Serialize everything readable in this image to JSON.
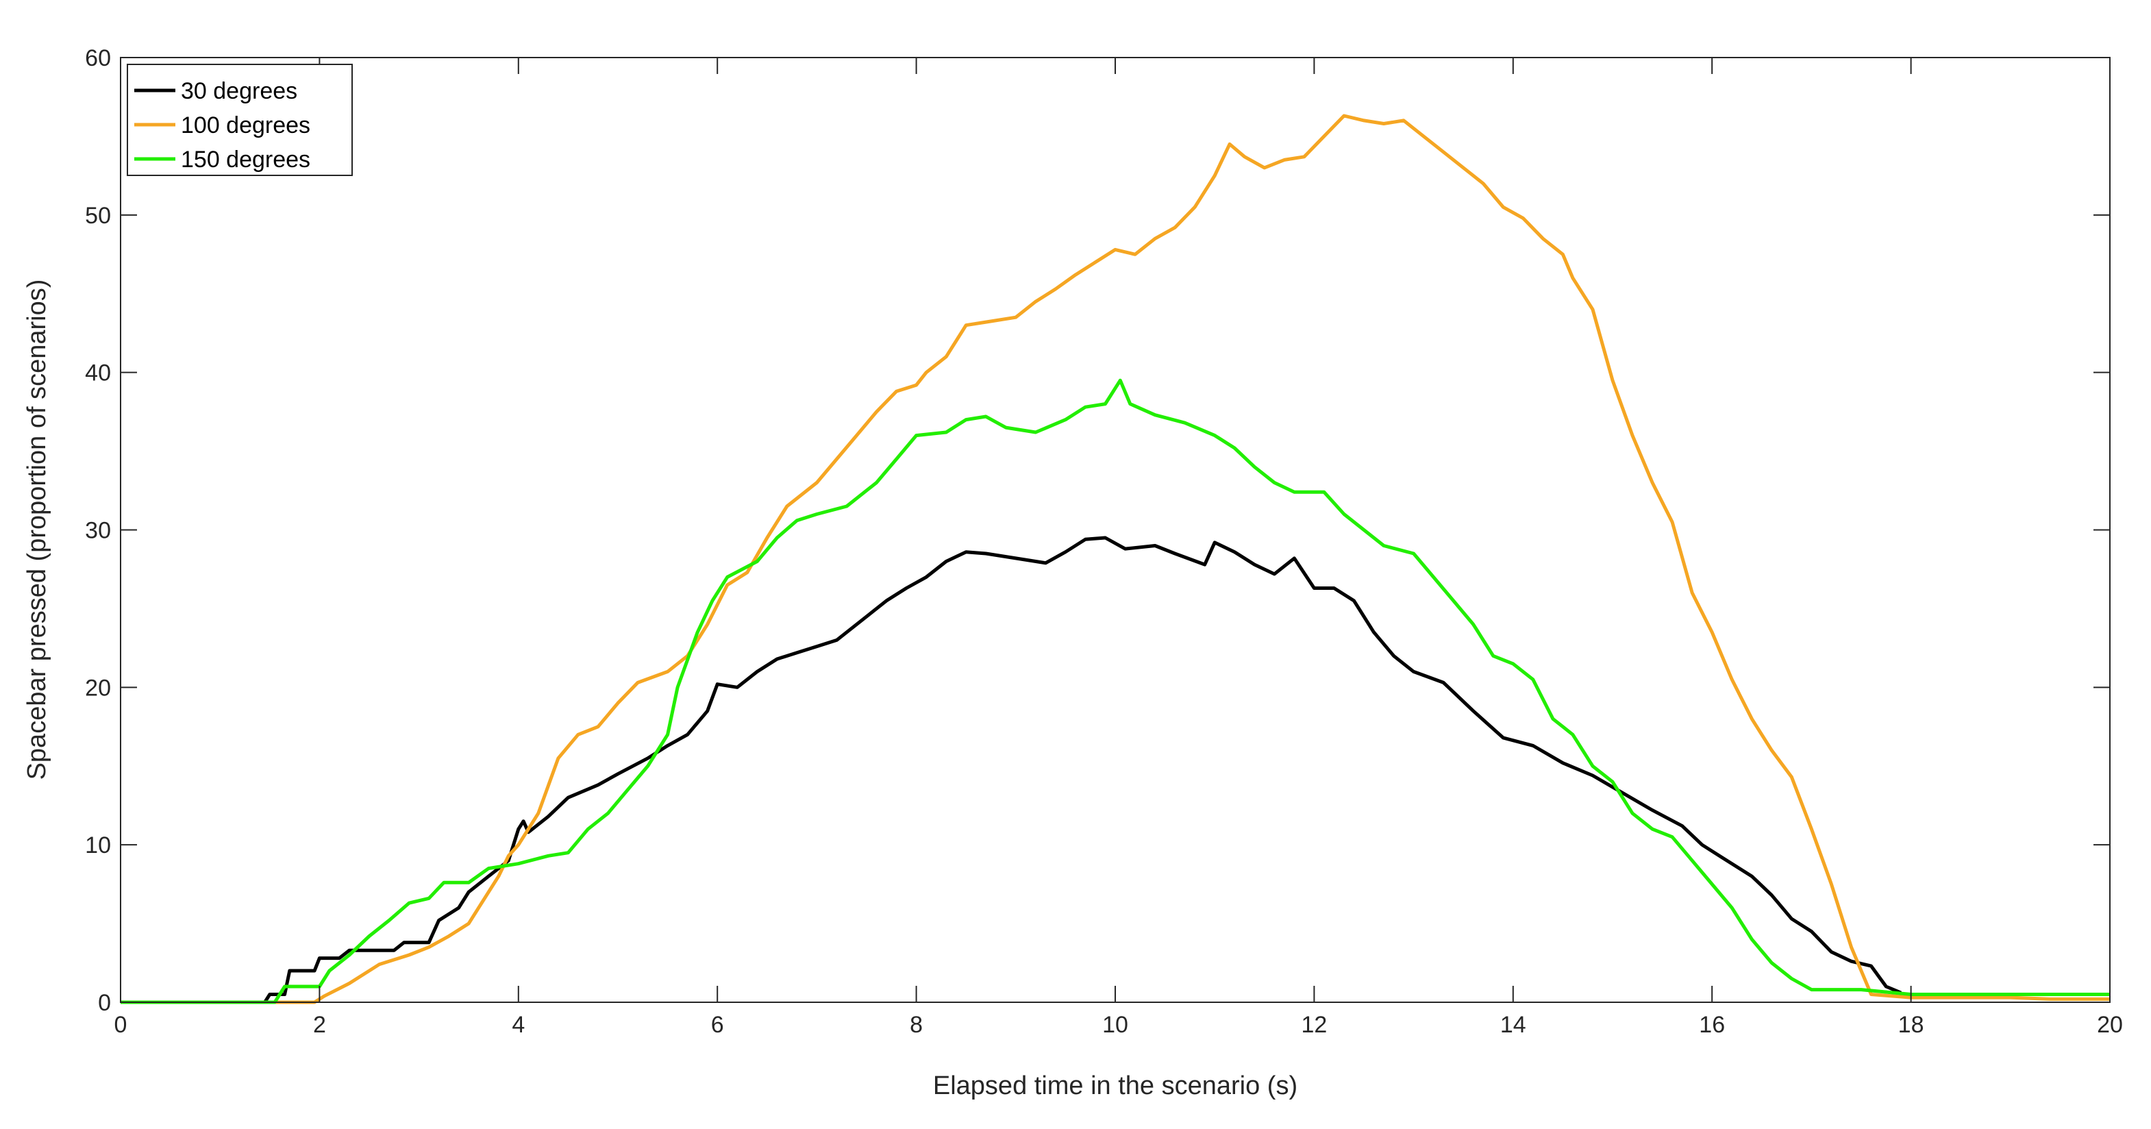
{
  "chart_data": {
    "type": "line",
    "title": "",
    "xlabel": "Elapsed time in the scenario (s)",
    "ylabel": "Spacebar pressed (proportion of scenarios)",
    "xlim": [
      0,
      20
    ],
    "ylim": [
      0,
      60
    ],
    "x_ticks": [
      "0",
      "2",
      "4",
      "6",
      "8",
      "10",
      "12",
      "14",
      "16",
      "18",
      "20"
    ],
    "y_ticks": [
      "0",
      "10",
      "20",
      "30",
      "40",
      "50",
      "60"
    ],
    "grid": false,
    "legend_position": "top-left",
    "series": [
      {
        "name": "30 degrees",
        "color": "#000000",
        "points": [
          [
            0,
            0
          ],
          [
            1.45,
            0
          ],
          [
            1.5,
            0.5
          ],
          [
            1.65,
            0.5
          ],
          [
            1.7,
            2
          ],
          [
            1.95,
            2
          ],
          [
            2.0,
            2.8
          ],
          [
            2.2,
            2.8
          ],
          [
            2.3,
            3.3
          ],
          [
            2.75,
            3.3
          ],
          [
            2.85,
            3.8
          ],
          [
            3.1,
            3.8
          ],
          [
            3.2,
            5.2
          ],
          [
            3.4,
            6.0
          ],
          [
            3.5,
            7.0
          ],
          [
            3.7,
            8.0
          ],
          [
            3.9,
            9.0
          ],
          [
            4.0,
            11.0
          ],
          [
            4.05,
            11.5
          ],
          [
            4.1,
            10.8
          ],
          [
            4.3,
            11.8
          ],
          [
            4.5,
            13.0
          ],
          [
            4.8,
            13.8
          ],
          [
            5.0,
            14.5
          ],
          [
            5.3,
            15.5
          ],
          [
            5.5,
            16.3
          ],
          [
            5.7,
            17.0
          ],
          [
            5.9,
            18.5
          ],
          [
            6.0,
            20.2
          ],
          [
            6.2,
            20.0
          ],
          [
            6.4,
            21.0
          ],
          [
            6.6,
            21.8
          ],
          [
            6.8,
            22.2
          ],
          [
            7.0,
            22.6
          ],
          [
            7.2,
            23.0
          ],
          [
            7.5,
            24.5
          ],
          [
            7.7,
            25.5
          ],
          [
            7.9,
            26.3
          ],
          [
            8.1,
            27.0
          ],
          [
            8.3,
            28.0
          ],
          [
            8.5,
            28.6
          ],
          [
            8.7,
            28.5
          ],
          [
            9.0,
            28.2
          ],
          [
            9.3,
            27.9
          ],
          [
            9.5,
            28.6
          ],
          [
            9.7,
            29.4
          ],
          [
            9.9,
            29.5
          ],
          [
            10.1,
            28.8
          ],
          [
            10.4,
            29.0
          ],
          [
            10.6,
            28.5
          ],
          [
            10.9,
            27.8
          ],
          [
            11.0,
            29.2
          ],
          [
            11.2,
            28.6
          ],
          [
            11.4,
            27.8
          ],
          [
            11.6,
            27.2
          ],
          [
            11.8,
            28.2
          ],
          [
            12.0,
            26.3
          ],
          [
            12.2,
            26.3
          ],
          [
            12.4,
            25.5
          ],
          [
            12.6,
            23.5
          ],
          [
            12.8,
            22.0
          ],
          [
            13.0,
            21.0
          ],
          [
            13.3,
            20.3
          ],
          [
            13.6,
            18.5
          ],
          [
            13.9,
            16.8
          ],
          [
            14.2,
            16.3
          ],
          [
            14.5,
            15.2
          ],
          [
            14.8,
            14.4
          ],
          [
            15.1,
            13.3
          ],
          [
            15.4,
            12.2
          ],
          [
            15.7,
            11.2
          ],
          [
            15.9,
            10.0
          ],
          [
            16.1,
            9.2
          ],
          [
            16.4,
            8.0
          ],
          [
            16.6,
            6.8
          ],
          [
            16.8,
            5.3
          ],
          [
            17.0,
            4.5
          ],
          [
            17.2,
            3.2
          ],
          [
            17.4,
            2.6
          ],
          [
            17.6,
            2.3
          ],
          [
            17.75,
            1.0
          ],
          [
            17.9,
            0.6
          ]
        ]
      },
      {
        "name": "100 degrees",
        "color": "#F5A623",
        "points": [
          [
            0,
            0
          ],
          [
            1.95,
            0
          ],
          [
            2.05,
            0.4
          ],
          [
            2.3,
            1.2
          ],
          [
            2.6,
            2.4
          ],
          [
            2.9,
            3.0
          ],
          [
            3.1,
            3.5
          ],
          [
            3.3,
            4.2
          ],
          [
            3.5,
            5.0
          ],
          [
            3.6,
            6.0
          ],
          [
            3.8,
            8.0
          ],
          [
            3.9,
            9.3
          ],
          [
            4.0,
            10.0
          ],
          [
            4.2,
            12.0
          ],
          [
            4.4,
            15.5
          ],
          [
            4.6,
            17.0
          ],
          [
            4.8,
            17.5
          ],
          [
            5.0,
            19.0
          ],
          [
            5.2,
            20.3
          ],
          [
            5.5,
            21.0
          ],
          [
            5.7,
            22.0
          ],
          [
            5.9,
            24.0
          ],
          [
            6.1,
            26.5
          ],
          [
            6.3,
            27.3
          ],
          [
            6.5,
            29.5
          ],
          [
            6.7,
            31.5
          ],
          [
            7.0,
            33.0
          ],
          [
            7.2,
            34.5
          ],
          [
            7.4,
            36.0
          ],
          [
            7.6,
            37.5
          ],
          [
            7.8,
            38.8
          ],
          [
            8.0,
            39.2
          ],
          [
            8.1,
            40.0
          ],
          [
            8.3,
            41.0
          ],
          [
            8.5,
            43.0
          ],
          [
            8.7,
            43.2
          ],
          [
            9.0,
            43.5
          ],
          [
            9.2,
            44.5
          ],
          [
            9.4,
            45.3
          ],
          [
            9.6,
            46.2
          ],
          [
            9.8,
            47.0
          ],
          [
            10.0,
            47.8
          ],
          [
            10.2,
            47.5
          ],
          [
            10.4,
            48.5
          ],
          [
            10.6,
            49.2
          ],
          [
            10.8,
            50.5
          ],
          [
            11.0,
            52.5
          ],
          [
            11.15,
            54.5
          ],
          [
            11.3,
            53.7
          ],
          [
            11.5,
            53.0
          ],
          [
            11.7,
            53.5
          ],
          [
            11.9,
            53.7
          ],
          [
            12.1,
            55.0
          ],
          [
            12.3,
            56.3
          ],
          [
            12.5,
            56.0
          ],
          [
            12.7,
            55.8
          ],
          [
            12.9,
            56.0
          ],
          [
            13.1,
            55.0
          ],
          [
            13.3,
            54.0
          ],
          [
            13.5,
            53.0
          ],
          [
            13.7,
            52.0
          ],
          [
            13.9,
            50.5
          ],
          [
            14.1,
            49.8
          ],
          [
            14.3,
            48.5
          ],
          [
            14.5,
            47.5
          ],
          [
            14.6,
            46.0
          ],
          [
            14.8,
            44.0
          ],
          [
            15.0,
            39.5
          ],
          [
            15.2,
            36.0
          ],
          [
            15.4,
            33.0
          ],
          [
            15.6,
            30.5
          ],
          [
            15.8,
            26.0
          ],
          [
            16.0,
            23.5
          ],
          [
            16.2,
            20.5
          ],
          [
            16.4,
            18.0
          ],
          [
            16.6,
            16.0
          ],
          [
            16.8,
            14.3
          ],
          [
            17.0,
            11.0
          ],
          [
            17.2,
            7.5
          ],
          [
            17.4,
            3.5
          ],
          [
            17.6,
            0.5
          ],
          [
            18.0,
            0.3
          ],
          [
            19.0,
            0.3
          ],
          [
            19.4,
            0.2
          ],
          [
            20.0,
            0.2
          ]
        ]
      },
      {
        "name": "150 degrees",
        "color": "#22EE00",
        "points": [
          [
            0,
            0
          ],
          [
            1.55,
            0
          ],
          [
            1.65,
            1.0
          ],
          [
            2.0,
            1.0
          ],
          [
            2.1,
            2.0
          ],
          [
            2.3,
            3.0
          ],
          [
            2.5,
            4.2
          ],
          [
            2.7,
            5.2
          ],
          [
            2.9,
            6.3
          ],
          [
            3.1,
            6.6
          ],
          [
            3.25,
            7.6
          ],
          [
            3.5,
            7.6
          ],
          [
            3.7,
            8.5
          ],
          [
            4.0,
            8.8
          ],
          [
            4.3,
            9.3
          ],
          [
            4.5,
            9.5
          ],
          [
            4.7,
            11.0
          ],
          [
            4.9,
            12.0
          ],
          [
            5.1,
            13.5
          ],
          [
            5.3,
            15.0
          ],
          [
            5.5,
            17.0
          ],
          [
            5.6,
            20.0
          ],
          [
            5.8,
            23.5
          ],
          [
            5.95,
            25.5
          ],
          [
            6.1,
            27.0
          ],
          [
            6.4,
            28.0
          ],
          [
            6.6,
            29.5
          ],
          [
            6.8,
            30.6
          ],
          [
            7.0,
            31.0
          ],
          [
            7.3,
            31.5
          ],
          [
            7.6,
            33.0
          ],
          [
            7.8,
            34.5
          ],
          [
            8.0,
            36.0
          ],
          [
            8.3,
            36.2
          ],
          [
            8.5,
            37.0
          ],
          [
            8.7,
            37.2
          ],
          [
            8.9,
            36.5
          ],
          [
            9.2,
            36.2
          ],
          [
            9.5,
            37.0
          ],
          [
            9.7,
            37.8
          ],
          [
            9.9,
            38.0
          ],
          [
            10.05,
            39.5
          ],
          [
            10.15,
            38.0
          ],
          [
            10.4,
            37.3
          ],
          [
            10.7,
            36.8
          ],
          [
            11.0,
            36.0
          ],
          [
            11.2,
            35.2
          ],
          [
            11.4,
            34.0
          ],
          [
            11.6,
            33.0
          ],
          [
            11.8,
            32.4
          ],
          [
            12.1,
            32.4
          ],
          [
            12.3,
            31.0
          ],
          [
            12.5,
            30.0
          ],
          [
            12.7,
            29.0
          ],
          [
            13.0,
            28.5
          ],
          [
            13.2,
            27.0
          ],
          [
            13.4,
            25.5
          ],
          [
            13.6,
            24.0
          ],
          [
            13.8,
            22.0
          ],
          [
            14.0,
            21.5
          ],
          [
            14.2,
            20.5
          ],
          [
            14.4,
            18.0
          ],
          [
            14.6,
            17.0
          ],
          [
            14.8,
            15.0
          ],
          [
            15.0,
            14.0
          ],
          [
            15.2,
            12.0
          ],
          [
            15.4,
            11.0
          ],
          [
            15.6,
            10.5
          ],
          [
            15.8,
            9.0
          ],
          [
            16.0,
            7.5
          ],
          [
            16.2,
            6.0
          ],
          [
            16.4,
            4.0
          ],
          [
            16.6,
            2.5
          ],
          [
            16.8,
            1.5
          ],
          [
            17.0,
            0.8
          ],
          [
            17.5,
            0.8
          ],
          [
            18.0,
            0.5
          ],
          [
            20.0,
            0.5
          ]
        ]
      }
    ]
  }
}
